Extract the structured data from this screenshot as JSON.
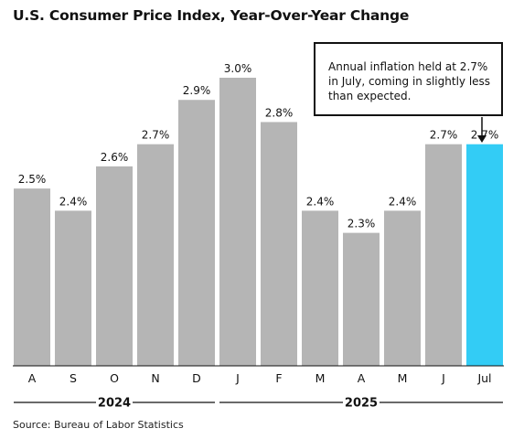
{
  "title": "U.S. Consumer Price Index, Year-Over-Year Change",
  "source": "Source: Bureau of Labor Statistics",
  "annotation": "Annual inflation held at 2.7% in July, coming in slightly less than expected.",
  "colors": {
    "bar": "#b5b5b5",
    "highlight": "#33ccf5"
  },
  "chart_data": {
    "type": "bar",
    "categories": [
      "A",
      "S",
      "O",
      "N",
      "D",
      "J",
      "F",
      "M",
      "A",
      "M",
      "J",
      "Jul"
    ],
    "values": [
      2.5,
      2.4,
      2.6,
      2.7,
      2.9,
      3.0,
      2.8,
      2.4,
      2.3,
      2.4,
      2.7,
      2.7
    ],
    "data_labels": [
      "2.5%",
      "2.4%",
      "2.6%",
      "2.7%",
      "2.9%",
      "3.0%",
      "2.8%",
      "2.4%",
      "2.3%",
      "2.4%",
      "2.7%",
      "2.7%"
    ],
    "highlight_index": 11,
    "year_groups": [
      {
        "label": "2024",
        "start": 0,
        "end": 4
      },
      {
        "label": "2025",
        "start": 5,
        "end": 11
      }
    ],
    "ylim": [
      1.7,
      3.0
    ],
    "title": "U.S. Consumer Price Index, Year-Over-Year Change",
    "xlabel": "",
    "ylabel": "",
    "grid": false,
    "legend": "none"
  }
}
